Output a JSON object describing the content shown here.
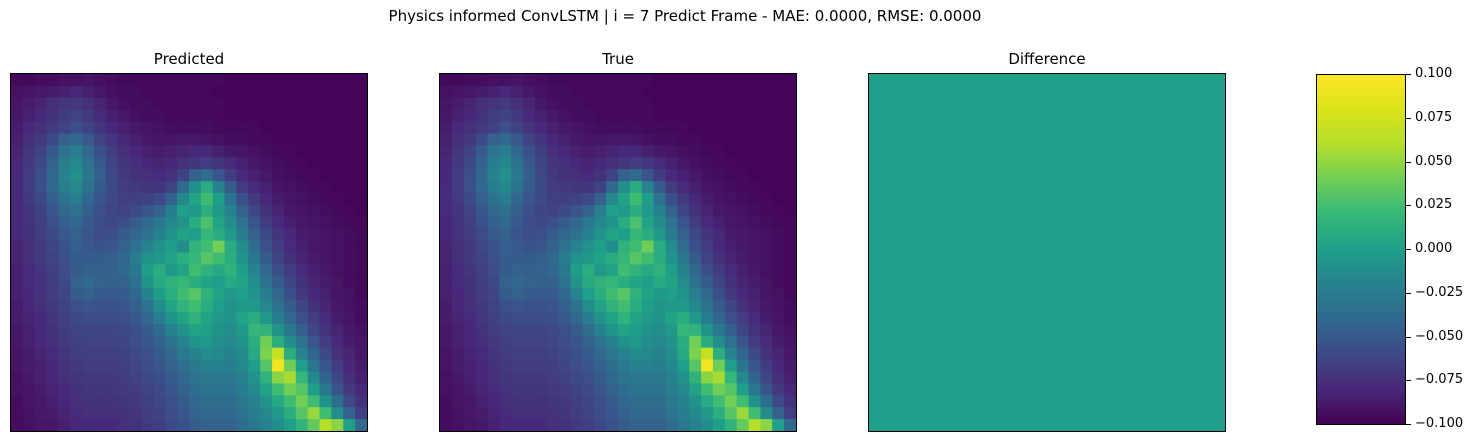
{
  "figure": {
    "suptitle": "Physics informed ConvLSTM | i = 7 Predict Frame - MAE: 0.0000, RMSE: 0.0000"
  },
  "chart_data": [
    {
      "type": "heatmap",
      "title": "Predicted",
      "colormap": "viridis",
      "grid": [
        [
          0.02,
          0.02,
          0.03,
          0.03,
          0.04,
          0.04,
          0.05,
          0.04,
          0.03,
          0.02,
          0.02,
          0.02,
          0.02,
          0.02,
          0.02,
          0.02,
          0.02,
          0.02,
          0.01,
          0.01,
          0.01,
          0.01,
          0.01,
          0.01,
          0.01,
          0.01,
          0.01,
          0.01,
          0.01,
          0.01
        ],
        [
          0.04,
          0.05,
          0.06,
          0.07,
          0.08,
          0.1,
          0.08,
          0.06,
          0.04,
          0.03,
          0.03,
          0.02,
          0.02,
          0.02,
          0.02,
          0.02,
          0.02,
          0.01,
          0.01,
          0.01,
          0.01,
          0.01,
          0.01,
          0.01,
          0.01,
          0.01,
          0.01,
          0.01,
          0.01,
          0.01
        ],
        [
          0.05,
          0.07,
          0.09,
          0.12,
          0.14,
          0.15,
          0.12,
          0.09,
          0.06,
          0.04,
          0.03,
          0.03,
          0.02,
          0.02,
          0.02,
          0.02,
          0.02,
          0.02,
          0.01,
          0.01,
          0.01,
          0.01,
          0.01,
          0.01,
          0.01,
          0.01,
          0.01,
          0.01,
          0.01,
          0.01
        ],
        [
          0.06,
          0.08,
          0.1,
          0.13,
          0.16,
          0.18,
          0.15,
          0.11,
          0.08,
          0.06,
          0.04,
          0.03,
          0.03,
          0.02,
          0.02,
          0.02,
          0.02,
          0.02,
          0.01,
          0.01,
          0.01,
          0.01,
          0.01,
          0.01,
          0.01,
          0.01,
          0.01,
          0.01,
          0.01,
          0.01
        ],
        [
          0.07,
          0.1,
          0.12,
          0.15,
          0.18,
          0.22,
          0.18,
          0.14,
          0.1,
          0.08,
          0.06,
          0.05,
          0.04,
          0.03,
          0.03,
          0.03,
          0.03,
          0.02,
          0.02,
          0.02,
          0.02,
          0.01,
          0.01,
          0.01,
          0.01,
          0.01,
          0.01,
          0.01,
          0.01,
          0.01
        ],
        [
          0.08,
          0.12,
          0.15,
          0.2,
          0.28,
          0.3,
          0.25,
          0.18,
          0.14,
          0.1,
          0.08,
          0.06,
          0.05,
          0.05,
          0.06,
          0.06,
          0.05,
          0.04,
          0.03,
          0.03,
          0.02,
          0.02,
          0.01,
          0.01,
          0.01,
          0.01,
          0.01,
          0.01,
          0.01,
          0.01
        ],
        [
          0.09,
          0.14,
          0.18,
          0.25,
          0.34,
          0.38,
          0.3,
          0.22,
          0.17,
          0.12,
          0.1,
          0.08,
          0.07,
          0.08,
          0.09,
          0.1,
          0.1,
          0.08,
          0.06,
          0.05,
          0.04,
          0.03,
          0.02,
          0.02,
          0.01,
          0.01,
          0.01,
          0.01,
          0.01,
          0.01
        ],
        [
          0.1,
          0.15,
          0.2,
          0.28,
          0.38,
          0.42,
          0.34,
          0.25,
          0.19,
          0.14,
          0.12,
          0.1,
          0.09,
          0.1,
          0.12,
          0.14,
          0.16,
          0.14,
          0.11,
          0.08,
          0.06,
          0.04,
          0.03,
          0.02,
          0.02,
          0.01,
          0.01,
          0.01,
          0.01,
          0.01
        ],
        [
          0.1,
          0.16,
          0.22,
          0.3,
          0.4,
          0.45,
          0.36,
          0.27,
          0.2,
          0.15,
          0.13,
          0.12,
          0.11,
          0.13,
          0.18,
          0.28,
          0.32,
          0.24,
          0.16,
          0.11,
          0.08,
          0.06,
          0.04,
          0.03,
          0.02,
          0.02,
          0.01,
          0.01,
          0.01,
          0.01
        ],
        [
          0.11,
          0.16,
          0.22,
          0.3,
          0.38,
          0.42,
          0.34,
          0.26,
          0.2,
          0.16,
          0.15,
          0.14,
          0.14,
          0.18,
          0.3,
          0.45,
          0.55,
          0.4,
          0.26,
          0.16,
          0.11,
          0.08,
          0.05,
          0.04,
          0.03,
          0.02,
          0.02,
          0.01,
          0.01,
          0.01
        ],
        [
          0.11,
          0.15,
          0.2,
          0.27,
          0.34,
          0.38,
          0.3,
          0.24,
          0.2,
          0.17,
          0.17,
          0.18,
          0.2,
          0.28,
          0.42,
          0.52,
          0.62,
          0.5,
          0.34,
          0.22,
          0.15,
          0.1,
          0.07,
          0.05,
          0.04,
          0.03,
          0.02,
          0.02,
          0.01,
          0.01
        ],
        [
          0.11,
          0.14,
          0.18,
          0.24,
          0.3,
          0.33,
          0.27,
          0.22,
          0.19,
          0.18,
          0.2,
          0.24,
          0.28,
          0.38,
          0.5,
          0.48,
          0.56,
          0.48,
          0.4,
          0.28,
          0.19,
          0.13,
          0.09,
          0.06,
          0.05,
          0.04,
          0.03,
          0.02,
          0.02,
          0.01
        ],
        [
          0.1,
          0.13,
          0.17,
          0.22,
          0.27,
          0.3,
          0.25,
          0.21,
          0.2,
          0.22,
          0.26,
          0.3,
          0.36,
          0.42,
          0.46,
          0.55,
          0.64,
          0.52,
          0.44,
          0.34,
          0.24,
          0.16,
          0.11,
          0.08,
          0.06,
          0.05,
          0.04,
          0.03,
          0.02,
          0.02
        ],
        [
          0.1,
          0.13,
          0.16,
          0.2,
          0.25,
          0.28,
          0.24,
          0.21,
          0.22,
          0.26,
          0.3,
          0.34,
          0.4,
          0.46,
          0.52,
          0.5,
          0.6,
          0.56,
          0.48,
          0.38,
          0.28,
          0.2,
          0.14,
          0.1,
          0.07,
          0.06,
          0.05,
          0.04,
          0.03,
          0.02
        ],
        [
          0.09,
          0.12,
          0.15,
          0.19,
          0.23,
          0.27,
          0.25,
          0.23,
          0.24,
          0.28,
          0.34,
          0.4,
          0.46,
          0.5,
          0.44,
          0.58,
          0.62,
          0.7,
          0.55,
          0.44,
          0.32,
          0.22,
          0.16,
          0.11,
          0.08,
          0.06,
          0.05,
          0.04,
          0.03,
          0.02
        ],
        [
          0.09,
          0.12,
          0.15,
          0.18,
          0.22,
          0.26,
          0.26,
          0.26,
          0.27,
          0.3,
          0.38,
          0.46,
          0.48,
          0.52,
          0.56,
          0.6,
          0.66,
          0.62,
          0.56,
          0.46,
          0.36,
          0.26,
          0.18,
          0.13,
          0.09,
          0.07,
          0.05,
          0.04,
          0.03,
          0.02
        ],
        [
          0.08,
          0.11,
          0.14,
          0.17,
          0.21,
          0.26,
          0.28,
          0.27,
          0.28,
          0.3,
          0.36,
          0.5,
          0.56,
          0.48,
          0.52,
          0.62,
          0.58,
          0.54,
          0.58,
          0.5,
          0.4,
          0.3,
          0.22,
          0.16,
          0.11,
          0.08,
          0.06,
          0.04,
          0.03,
          0.02
        ],
        [
          0.08,
          0.11,
          0.13,
          0.16,
          0.2,
          0.28,
          0.3,
          0.28,
          0.27,
          0.28,
          0.34,
          0.46,
          0.54,
          0.58,
          0.6,
          0.56,
          0.52,
          0.5,
          0.54,
          0.52,
          0.44,
          0.34,
          0.26,
          0.19,
          0.13,
          0.09,
          0.07,
          0.05,
          0.03,
          0.02
        ],
        [
          0.08,
          0.1,
          0.13,
          0.16,
          0.19,
          0.26,
          0.28,
          0.26,
          0.25,
          0.26,
          0.3,
          0.4,
          0.5,
          0.56,
          0.62,
          0.66,
          0.58,
          0.52,
          0.48,
          0.5,
          0.46,
          0.38,
          0.3,
          0.22,
          0.15,
          0.11,
          0.08,
          0.05,
          0.04,
          0.02
        ],
        [
          0.07,
          0.1,
          0.12,
          0.15,
          0.18,
          0.22,
          0.24,
          0.23,
          0.23,
          0.24,
          0.27,
          0.34,
          0.44,
          0.52,
          0.58,
          0.62,
          0.56,
          0.5,
          0.46,
          0.48,
          0.48,
          0.42,
          0.34,
          0.26,
          0.19,
          0.13,
          0.09,
          0.06,
          0.04,
          0.03
        ],
        [
          0.07,
          0.09,
          0.11,
          0.14,
          0.17,
          0.2,
          0.21,
          0.21,
          0.21,
          0.22,
          0.25,
          0.3,
          0.38,
          0.46,
          0.52,
          0.58,
          0.52,
          0.48,
          0.46,
          0.52,
          0.56,
          0.48,
          0.38,
          0.3,
          0.22,
          0.16,
          0.11,
          0.07,
          0.05,
          0.03
        ],
        [
          0.06,
          0.08,
          0.1,
          0.13,
          0.16,
          0.18,
          0.19,
          0.19,
          0.19,
          0.2,
          0.22,
          0.26,
          0.32,
          0.4,
          0.46,
          0.52,
          0.5,
          0.46,
          0.44,
          0.48,
          0.6,
          0.58,
          0.46,
          0.36,
          0.27,
          0.19,
          0.13,
          0.09,
          0.06,
          0.04
        ],
        [
          0.06,
          0.08,
          0.1,
          0.12,
          0.15,
          0.17,
          0.18,
          0.18,
          0.18,
          0.19,
          0.21,
          0.24,
          0.28,
          0.34,
          0.4,
          0.46,
          0.48,
          0.44,
          0.42,
          0.46,
          0.56,
          0.7,
          0.56,
          0.44,
          0.33,
          0.24,
          0.16,
          0.11,
          0.07,
          0.05
        ],
        [
          0.05,
          0.07,
          0.09,
          0.11,
          0.14,
          0.16,
          0.17,
          0.17,
          0.17,
          0.18,
          0.2,
          0.22,
          0.26,
          0.3,
          0.36,
          0.4,
          0.44,
          0.42,
          0.4,
          0.44,
          0.54,
          0.72,
          0.84,
          0.56,
          0.4,
          0.29,
          0.2,
          0.13,
          0.09,
          0.06
        ],
        [
          0.05,
          0.07,
          0.08,
          0.1,
          0.13,
          0.15,
          0.16,
          0.16,
          0.16,
          0.17,
          0.19,
          0.21,
          0.24,
          0.28,
          0.32,
          0.36,
          0.4,
          0.4,
          0.38,
          0.42,
          0.5,
          0.66,
          0.96,
          0.7,
          0.5,
          0.35,
          0.24,
          0.16,
          0.1,
          0.07
        ],
        [
          0.04,
          0.06,
          0.08,
          0.1,
          0.12,
          0.14,
          0.15,
          0.15,
          0.15,
          0.16,
          0.18,
          0.2,
          0.22,
          0.26,
          0.3,
          0.34,
          0.36,
          0.36,
          0.36,
          0.4,
          0.46,
          0.58,
          0.74,
          0.78,
          0.6,
          0.42,
          0.29,
          0.19,
          0.12,
          0.08
        ],
        [
          0.04,
          0.05,
          0.07,
          0.09,
          0.11,
          0.13,
          0.14,
          0.14,
          0.14,
          0.15,
          0.16,
          0.18,
          0.2,
          0.24,
          0.28,
          0.32,
          0.34,
          0.34,
          0.34,
          0.38,
          0.42,
          0.52,
          0.62,
          0.7,
          0.66,
          0.5,
          0.36,
          0.24,
          0.15,
          0.1
        ],
        [
          0.03,
          0.05,
          0.06,
          0.08,
          0.1,
          0.12,
          0.13,
          0.13,
          0.13,
          0.14,
          0.15,
          0.17,
          0.19,
          0.22,
          0.26,
          0.3,
          0.32,
          0.32,
          0.32,
          0.36,
          0.4,
          0.46,
          0.54,
          0.62,
          0.7,
          0.62,
          0.46,
          0.32,
          0.2,
          0.13
        ],
        [
          0.03,
          0.04,
          0.06,
          0.07,
          0.09,
          0.11,
          0.12,
          0.12,
          0.12,
          0.13,
          0.14,
          0.16,
          0.18,
          0.21,
          0.24,
          0.28,
          0.3,
          0.3,
          0.3,
          0.34,
          0.38,
          0.42,
          0.48,
          0.56,
          0.66,
          0.76,
          0.62,
          0.44,
          0.28,
          0.17
        ],
        [
          0.03,
          0.04,
          0.05,
          0.06,
          0.08,
          0.1,
          0.11,
          0.11,
          0.11,
          0.12,
          0.13,
          0.15,
          0.17,
          0.2,
          0.23,
          0.26,
          0.28,
          0.28,
          0.28,
          0.32,
          0.36,
          0.4,
          0.44,
          0.5,
          0.58,
          0.68,
          0.8,
          0.74,
          0.5,
          0.3
        ]
      ]
    },
    {
      "type": "heatmap",
      "title": "True",
      "colormap": "viridis",
      "same_as": "Predicted"
    },
    {
      "type": "heatmap",
      "title": "Difference",
      "colormap": "viridis",
      "uniform_value": 0.0,
      "colorbar": {
        "range": [
          -0.1,
          0.1
        ],
        "ticks": [
          "−0.100",
          "−0.075",
          "−0.050",
          "−0.025",
          "0.000",
          "0.025",
          "0.050",
          "0.075",
          "0.100"
        ],
        "tick_values": [
          -0.1,
          -0.075,
          -0.05,
          -0.025,
          0.0,
          0.025,
          0.05,
          0.075,
          0.1
        ]
      }
    }
  ]
}
